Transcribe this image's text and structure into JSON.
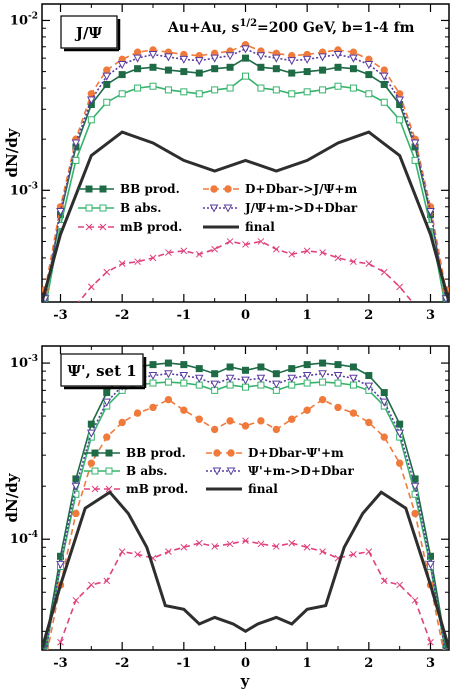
{
  "colors": {
    "bb_prod": "#1e6b46",
    "b_abs": "#36b36c",
    "mb_prod": "#e0427f",
    "ddbar_fwd": "#f07a3c",
    "ddbar_rev": "#5a3ca0",
    "final": "#2e2e2e"
  },
  "chart_data": [
    {
      "type": "line",
      "panel_tag": "J/Ψ",
      "header": "Au+Au, s1/2=200 GeV,  b=1-4 fm",
      "header_parts": {
        "pre": "Au+Au, s",
        "sup": "1/2",
        "post": "=200 GeV,  b=1-4 fm"
      },
      "ylabel": "dN/dy",
      "xlabel": "",
      "x_ticks": [
        "-3",
        "-2",
        "-1",
        "0",
        "1",
        "2",
        "3"
      ],
      "y_ticks": [
        {
          "value": 0.01,
          "base": "10",
          "exp": "-2"
        },
        {
          "value": 0.001,
          "base": "10",
          "exp": "-3"
        }
      ],
      "xlim": [
        -3.3,
        3.3
      ],
      "ylim": [
        0.00022,
        0.0125
      ],
      "log_y": true,
      "legend_placement": "bottom-center",
      "x": [
        -3.25,
        -3.0,
        -2.75,
        -2.5,
        -2.25,
        -2.0,
        -1.75,
        -1.5,
        -1.25,
        -1.0,
        -0.75,
        -0.5,
        -0.25,
        0.0,
        0.25,
        0.5,
        0.75,
        1.0,
        1.25,
        1.5,
        1.75,
        2.0,
        2.25,
        2.5,
        2.75,
        3.0,
        3.25
      ],
      "series": [
        {
          "name": "BB prod.",
          "style": "solid",
          "marker": "filled-square",
          "values": [
            0.00023,
            0.00072,
            0.0018,
            0.0032,
            0.0042,
            0.0048,
            0.0052,
            0.0053,
            0.0051,
            0.005,
            0.0049,
            0.0052,
            0.0053,
            0.006,
            0.0053,
            0.0052,
            0.0049,
            0.005,
            0.0051,
            0.0053,
            0.0052,
            0.0048,
            0.0042,
            0.0032,
            0.0018,
            0.00072,
            0.00023
          ]
        },
        {
          "name": "B abs.",
          "style": "solid",
          "marker": "open-square",
          "values": [
            0.0002,
            0.00062,
            0.0015,
            0.0026,
            0.0033,
            0.0037,
            0.004,
            0.0041,
            0.0039,
            0.0038,
            0.0037,
            0.0039,
            0.004,
            0.0047,
            0.004,
            0.0039,
            0.0037,
            0.0038,
            0.0039,
            0.0041,
            0.004,
            0.0037,
            0.0033,
            0.0026,
            0.0015,
            0.00062,
            0.0002
          ]
        },
        {
          "name": "mB prod.",
          "style": "dashed",
          "marker": "x",
          "values": [
            null,
            null,
            0.00021,
            0.00027,
            0.00033,
            0.00037,
            0.00038,
            0.0004,
            0.00043,
            0.00044,
            0.00042,
            0.00045,
            0.0005,
            0.00048,
            0.0005,
            0.00045,
            0.00042,
            0.00044,
            0.00043,
            0.0004,
            0.00038,
            0.00037,
            0.00033,
            0.00027,
            0.00021,
            null,
            null
          ]
        },
        {
          "name": "D+Dbar->J/Ψ+m",
          "style": "dashed",
          "marker": "filled-circle",
          "values": [
            0.00026,
            0.0008,
            0.002,
            0.0037,
            0.0051,
            0.0059,
            0.0065,
            0.0067,
            0.0065,
            0.0063,
            0.0062,
            0.0064,
            0.0066,
            0.0072,
            0.0066,
            0.0064,
            0.0062,
            0.0063,
            0.0065,
            0.0067,
            0.0065,
            0.0059,
            0.0051,
            0.0037,
            0.002,
            0.0008,
            0.00026
          ]
        },
        {
          "name": "J/Ψ+m->D+Dbar",
          "style": "dotted",
          "marker": "open-triangle-down",
          "values": [
            0.00023,
            0.00075,
            0.0019,
            0.0034,
            0.0047,
            0.0055,
            0.006,
            0.0063,
            0.0061,
            0.0059,
            0.0058,
            0.006,
            0.0062,
            0.0068,
            0.0062,
            0.006,
            0.0058,
            0.0059,
            0.0061,
            0.0063,
            0.006,
            0.0055,
            0.0047,
            0.0034,
            0.0019,
            0.00075,
            0.00023
          ]
        },
        {
          "name": "final",
          "style": "thick",
          "marker": "none",
          "x": [
            -3.3,
            -3.0,
            -2.5,
            -2.0,
            -1.5,
            -1.0,
            -0.5,
            0.0,
            0.5,
            1.0,
            1.5,
            2.0,
            2.5,
            3.0,
            3.3
          ],
          "values": [
            0.00022,
            0.00055,
            0.0016,
            0.0022,
            0.0019,
            0.0015,
            0.0013,
            0.0015,
            0.0013,
            0.0015,
            0.0019,
            0.0022,
            0.0016,
            0.00055,
            0.00022
          ]
        }
      ]
    },
    {
      "type": "line",
      "panel_tag": "Ψ', set 1",
      "header": "",
      "ylabel": "dN/dy",
      "xlabel": "y",
      "x_ticks": [
        "-3",
        "-2",
        "-1",
        "0",
        "1",
        "2",
        "3"
      ],
      "y_ticks": [
        {
          "value": 0.001,
          "base": "10",
          "exp": "-3"
        },
        {
          "value": 0.0001,
          "base": "10",
          "exp": "-4"
        }
      ],
      "xlim": [
        -3.3,
        3.3
      ],
      "ylim": [
        2.35e-05,
        0.00125
      ],
      "log_y": true,
      "legend_placement": "center",
      "x": [
        -3.25,
        -3.0,
        -2.75,
        -2.5,
        -2.25,
        -2.0,
        -1.75,
        -1.5,
        -1.25,
        -1.0,
        -0.75,
        -0.5,
        -0.25,
        0.0,
        0.25,
        0.5,
        0.75,
        1.0,
        1.25,
        1.5,
        1.75,
        2.0,
        2.25,
        2.5,
        2.75,
        3.0,
        3.25
      ],
      "series": [
        {
          "name": "BB prod.",
          "style": "solid",
          "marker": "filled-square",
          "values": [
            2.5e-05,
            8e-05,
            0.00022,
            0.00045,
            0.00068,
            0.00085,
            0.00095,
            0.00098,
            0.001,
            0.00098,
            0.00093,
            0.00087,
            0.00095,
            0.00091,
            0.00095,
            0.00087,
            0.00093,
            0.00098,
            0.001,
            0.00098,
            0.00095,
            0.00085,
            0.00068,
            0.00045,
            0.00022,
            8e-05,
            2.5e-05
          ]
        },
        {
          "name": "B abs.",
          "style": "solid",
          "marker": "open-square",
          "values": [
            2.2e-05,
            7e-05,
            0.00018,
            0.00038,
            0.00057,
            0.0007,
            0.00075,
            0.00077,
            0.00078,
            0.00077,
            0.00075,
            0.0007,
            0.00075,
            0.00073,
            0.00075,
            0.0007,
            0.00075,
            0.00077,
            0.00078,
            0.00077,
            0.00075,
            0.0007,
            0.00057,
            0.00038,
            0.00018,
            7e-05,
            2.2e-05
          ]
        },
        {
          "name": "mB prod.",
          "style": "dashed",
          "marker": "x",
          "values": [
            null,
            2.6e-05,
            4.5e-05,
            5.5e-05,
            5.8e-05,
            8.5e-05,
            8.2e-05,
            7.8e-05,
            8.5e-05,
            9e-05,
            9.5e-05,
            9.1e-05,
            9.4e-05,
            9.8e-05,
            9.4e-05,
            9.1e-05,
            9.5e-05,
            9e-05,
            8.5e-05,
            7.8e-05,
            8.2e-05,
            8.5e-05,
            5.8e-05,
            5.5e-05,
            4.5e-05,
            2.6e-05,
            null
          ]
        },
        {
          "name": "D+Dbar-Ψ'+m",
          "style": "dashed",
          "marker": "filled-circle",
          "values": [
            2e-05,
            5.5e-05,
            0.00014,
            0.00027,
            0.00038,
            0.00046,
            0.00052,
            0.00056,
            0.00062,
            0.00054,
            0.00048,
            0.00042,
            0.00047,
            0.00044,
            0.00047,
            0.00042,
            0.00048,
            0.00054,
            0.00062,
            0.00056,
            0.00052,
            0.00046,
            0.00038,
            0.00027,
            0.00014,
            5.5e-05,
            2e-05
          ]
        },
        {
          "name": "Ψ'+m->D+Dbar",
          "style": "dotted",
          "marker": "open-triangle-down",
          "values": [
            2.2e-05,
            7.2e-05,
            0.0002,
            0.0004,
            0.0006,
            0.00074,
            0.00082,
            0.00085,
            0.00087,
            0.00085,
            0.00082,
            0.00076,
            0.00082,
            0.0008,
            0.00082,
            0.00076,
            0.00082,
            0.00085,
            0.00087,
            0.00085,
            0.00082,
            0.00074,
            0.0006,
            0.0004,
            0.0002,
            7.2e-05,
            2.2e-05
          ]
        },
        {
          "name": "final",
          "style": "thick",
          "marker": "none",
          "x": [
            -3.3,
            -3.0,
            -2.6,
            -2.2,
            -1.9,
            -1.6,
            -1.3,
            -1.0,
            -0.75,
            -0.5,
            -0.2,
            0.0,
            0.2,
            0.5,
            0.75,
            1.0,
            1.3,
            1.6,
            1.9,
            2.2,
            2.6,
            3.0,
            3.3
          ],
          "values": [
            2.4e-05,
            5.5e-05,
            0.00015,
            0.000185,
            0.00014,
            9e-05,
            4.2e-05,
            4e-05,
            3.3e-05,
            3.6e-05,
            3.3e-05,
            3e-05,
            3.3e-05,
            3.6e-05,
            3.3e-05,
            4e-05,
            4.2e-05,
            9e-05,
            0.00014,
            0.000185,
            0.00015,
            5.5e-05,
            2.4e-05
          ]
        }
      ]
    }
  ]
}
